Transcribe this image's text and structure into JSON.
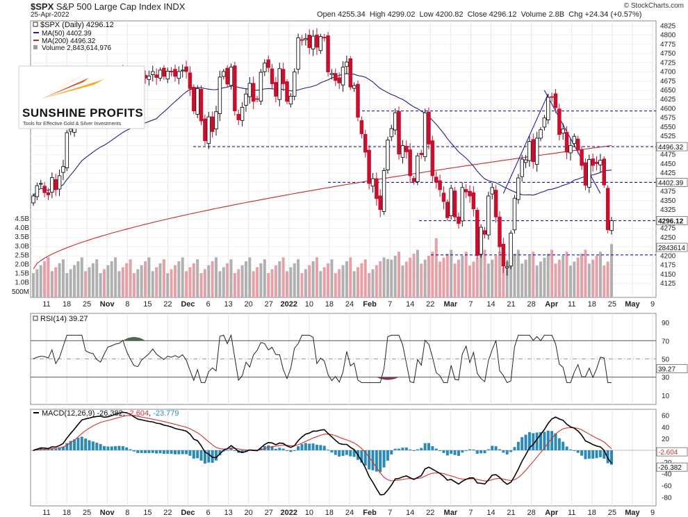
{
  "header": {
    "symbol": "$SPX",
    "name": "S&P 500 Large Cap Index",
    "exchange": "INDX",
    "date": "25-Apr-2022",
    "open_label": "Open",
    "open": "4255.34",
    "high_label": "High",
    "high": "4299.02",
    "low_label": "Low",
    "low": "4200.82",
    "close_label": "Close",
    "close": "4296.12",
    "volume_label": "Volume",
    "volume": "2.8B",
    "chg_label": "Chg",
    "chg": "+24.34 (+0.57%)",
    "brand": "© StockCharts.com"
  },
  "legend": {
    "main": "$SPX (Daily) 4296.12",
    "ma50": "MA(50) 4402.39",
    "ma200": "MA(200) 4496.32",
    "volume": "Volume 2,843,614,976"
  },
  "logo": {
    "name": "SUNSHINE PROFITS",
    "tagline": "Tools for Effective Gold & Silver Investments"
  },
  "colors": {
    "up": "#111111",
    "down": "#c8102e",
    "ma50": "#1a237e",
    "ma200": "#c62828",
    "hline": "#1a1aa0",
    "vol_up": "#b0b0b0",
    "vol_down": "#e8a0a8",
    "macd_hist": "#2a8ab8",
    "rsi_line": "#222222",
    "macd_line": "#000000",
    "signal_line": "#d32f2f",
    "rsi_overbought_fill": "#4a6b4a",
    "rsi_oversold_fill": "#7a3a4a"
  },
  "chart_data": [
    {
      "type": "candlestick",
      "title": "$SPX S&P 500 Large Cap Index INDX",
      "ylim": [
        4095,
        4835
      ],
      "y_ticks": [
        4125,
        4150,
        4175,
        4200,
        4225,
        4250,
        4275,
        4300,
        4325,
        4350,
        4375,
        4400,
        4425,
        4450,
        4475,
        4500,
        4525,
        4550,
        4575,
        4600,
        4625,
        4650,
        4675,
        4700,
        4725,
        4750,
        4775,
        4800,
        4825
      ],
      "x_tick_labels": [
        "11",
        "18",
        "25",
        "Nov",
        "8",
        "15",
        "22",
        "Dec",
        "6",
        "13",
        "20",
        "27",
        "2022",
        "10",
        "18",
        "24",
        "Feb",
        "7",
        "14",
        "22",
        "Mar",
        "7",
        "14",
        "21",
        "28",
        "Apr",
        "11",
        "18",
        "25",
        "May",
        "9"
      ],
      "price_labels": [
        "4496.32",
        "4402.39",
        "4296.12",
        "2843614"
      ],
      "volume_labels": [
        "4.5B",
        "4.0B",
        "3.5B",
        "3.0B",
        "2.5B",
        "2.0B",
        "1.5B",
        "1.0B",
        "500M"
      ],
      "horizontal_levels": [
        4594,
        4497,
        4400,
        4296,
        4203
      ],
      "series_close": [
        4363,
        4391,
        4397,
        4372,
        4366,
        4413,
        4380,
        4418,
        4443,
        4535,
        4545,
        4566,
        4605,
        4630,
        4581,
        4588,
        4606,
        4610,
        4614,
        4596,
        4634,
        4660,
        4680,
        4697,
        4701,
        4685,
        4667,
        4646,
        4649,
        4682,
        4683,
        4689,
        4701,
        4685,
        4705,
        4688,
        4702,
        4700,
        4688,
        4701,
        4705,
        4701,
        4655,
        4594,
        4655,
        4567,
        4513,
        4578,
        4538,
        4592,
        4686,
        4701,
        4667,
        4713,
        4594,
        4570,
        4604,
        4640,
        4669,
        4620,
        4626,
        4699,
        4724,
        4712,
        4668,
        4634,
        4709,
        4668,
        4620,
        4634,
        4700,
        4793,
        4786,
        4791,
        4766,
        4797,
        4767,
        4796,
        4793,
        4700,
        4696,
        4677,
        4670,
        4713,
        4727,
        4659,
        4663,
        4577,
        4532,
        4482,
        4397,
        4410,
        4356,
        4326,
        4432,
        4515,
        4546,
        4589,
        4477,
        4500,
        4483,
        4418,
        4402,
        4472,
        4475,
        4589,
        4504,
        4418,
        4401,
        4380,
        4348,
        4304,
        4384,
        4306,
        4288,
        4386,
        4374,
        4363,
        4328,
        4201,
        4278,
        4259,
        4363,
        4386,
        4306,
        4225,
        4173,
        4171,
        4262,
        4357,
        4412,
        4463,
        4461,
        4511,
        4456,
        4520,
        4543,
        4575,
        4631,
        4632,
        4603,
        4530,
        4545,
        4482,
        4500,
        4525,
        4488,
        4446,
        4392,
        4462,
        4446,
        4451,
        4460,
        4393,
        4271,
        4296
      ],
      "ma50_last": 4402.39,
      "ma200_last": 4496.32
    },
    {
      "type": "line",
      "title": "RSI(14) 39.27",
      "ylim": [
        0,
        100
      ],
      "y_ticks": [
        10,
        30,
        50,
        70,
        90
      ],
      "reference_levels": [
        30,
        50,
        70
      ],
      "last_value": "39.27"
    },
    {
      "type": "line",
      "title": "MACD(12,26,9) -26.382, -2.604, -23.779",
      "title_parts": [
        "MACD(12,26,9) -26.382, ",
        "-2.604",
        ", ",
        "-23.779"
      ],
      "ylim": [
        -95,
        70
      ],
      "y_ticks": [
        -80,
        -60,
        -40,
        -20,
        20,
        40,
        60
      ],
      "series": [
        {
          "name": "MACD",
          "last": "-26.382"
        },
        {
          "name": "Signal",
          "last": "-2.604"
        },
        {
          "name": "Histogram",
          "last": "-23.779"
        }
      ]
    }
  ]
}
